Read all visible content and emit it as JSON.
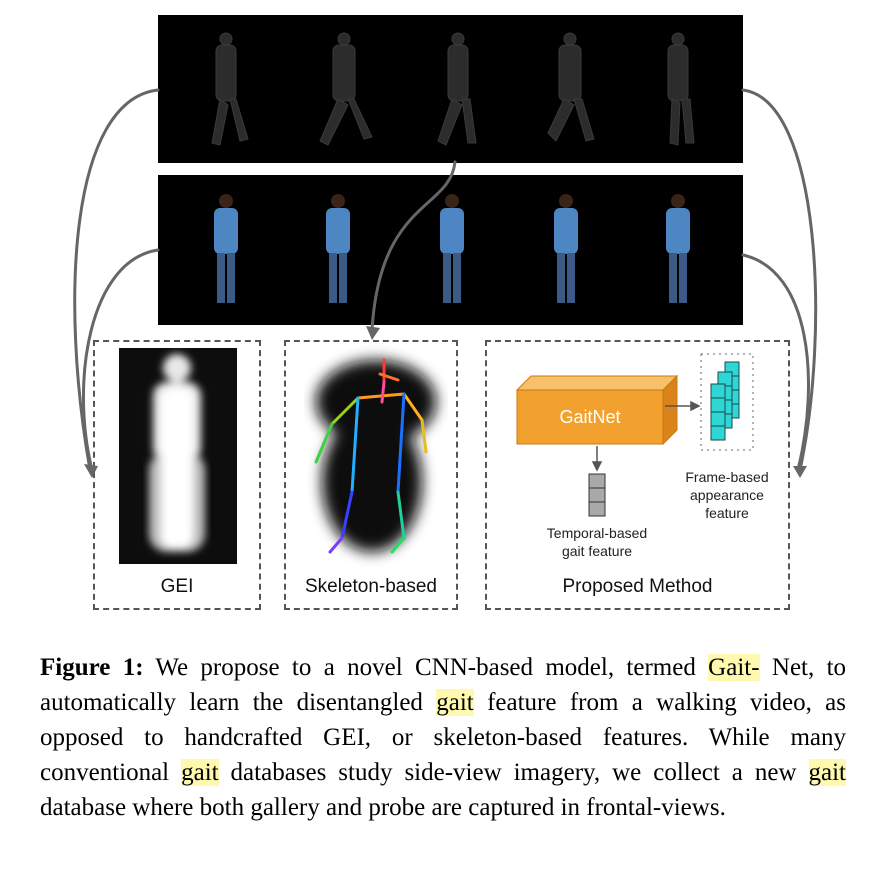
{
  "panels": {
    "gei_label": "GEI",
    "skeleton_label": "Skeleton-based",
    "proposed_label": "Proposed Method"
  },
  "proposed": {
    "network_label": "GaitNet",
    "temporal_label_1": "Temporal-based",
    "temporal_label_2": "gait feature",
    "frame_label_1": "Frame-based",
    "frame_label_2": "appearance",
    "frame_label_3": "feature"
  },
  "caption": {
    "figure_label": "Figure 1:",
    "t1": " We propose to a novel CNN-based model, termed ",
    "h1": "Gait-",
    "t2": "Net, to automatically learn the disentangled ",
    "h2": "gait",
    "t3": " feature from a walking video, as opposed to handcrafted GEI, or skeleton-based features. While many conventional ",
    "h3": "gait",
    "t4": " databases study side-view imagery, we collect a new ",
    "h4": "gait",
    "t5": " database where both gallery and probe are captured in frontal-views."
  },
  "colors": {
    "highlight": "#fff9b0",
    "gaitnet_box": "#f2a12e",
    "feature_cells": "#2fd6d6"
  }
}
